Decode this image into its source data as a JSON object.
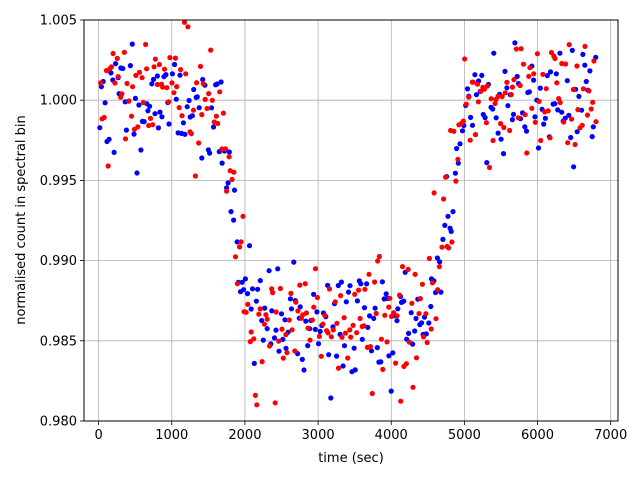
{
  "chart_data": {
    "type": "scatter",
    "xlabel": "time (sec)",
    "ylabel": "normalised count in spectral bin",
    "xlim": [
      -200,
      7100
    ],
    "ylim": [
      0.98,
      1.005
    ],
    "x_ticks": [
      0,
      1000,
      2000,
      3000,
      4000,
      5000,
      6000,
      7000
    ],
    "y_ticks": [
      0.98,
      0.985,
      0.99,
      0.995,
      1.0,
      1.005
    ],
    "x_tick_labels": [
      "0",
      "1000",
      "2000",
      "3000",
      "4000",
      "5000",
      "6000",
      "7000"
    ],
    "y_tick_labels": [
      "0.980",
      "0.985",
      "0.990",
      "0.995",
      "1.000",
      "1.005"
    ],
    "grid": true,
    "transit": {
      "t1": 1600,
      "t2": 2100,
      "t3": 4500,
      "t4": 5050,
      "baseline": 1.0,
      "depth": 0.014
    },
    "series": [
      {
        "color": "#0000ff",
        "x_start": 20,
        "x_end": 6790,
        "n_points": 280,
        "scatter_sd": 0.0018,
        "seed": 11
      },
      {
        "color": "#ff0000",
        "x_start": 30,
        "x_end": 6800,
        "n_points": 280,
        "scatter_sd": 0.002,
        "seed": 37
      }
    ],
    "marker_size": 2.6
  }
}
